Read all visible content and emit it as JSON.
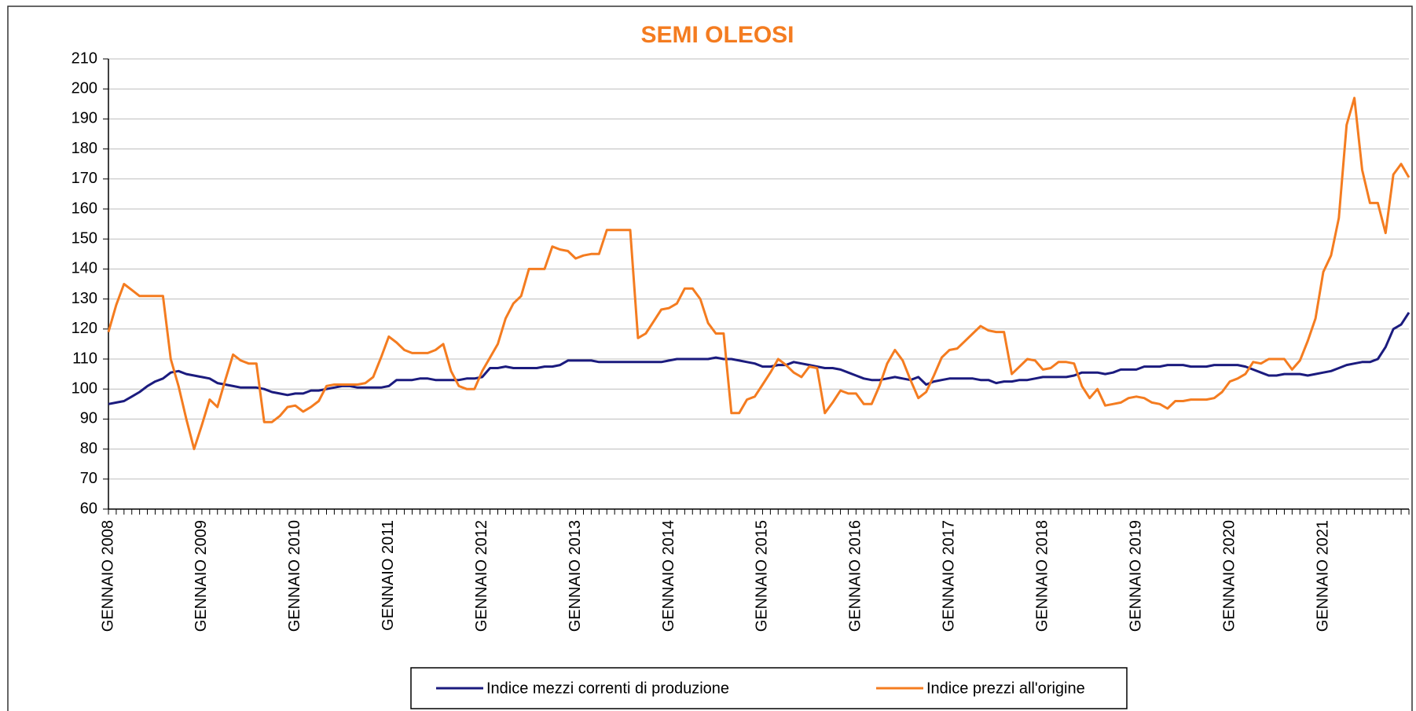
{
  "chart_data": {
    "type": "line",
    "title": "SEMI OLEOSI",
    "categories": [
      "GENNAIO 2008",
      null,
      null,
      null,
      null,
      null,
      null,
      null,
      null,
      null,
      null,
      null,
      "GENNAIO 2009",
      null,
      null,
      null,
      null,
      null,
      null,
      null,
      null,
      null,
      null,
      null,
      "GENNAIO 2010",
      null,
      null,
      null,
      null,
      null,
      null,
      null,
      null,
      null,
      null,
      null,
      "GENNAIO 2011",
      null,
      null,
      null,
      null,
      null,
      null,
      null,
      null,
      null,
      null,
      null,
      "GENNAIO 2012",
      null,
      null,
      null,
      null,
      null,
      null,
      null,
      null,
      null,
      null,
      null,
      "GENNAIO 2013",
      null,
      null,
      null,
      null,
      null,
      null,
      null,
      null,
      null,
      null,
      null,
      "GENNAIO 2014",
      null,
      null,
      null,
      null,
      null,
      null,
      null,
      null,
      null,
      null,
      null,
      "GENNAIO 2015",
      null,
      null,
      null,
      null,
      null,
      null,
      null,
      null,
      null,
      null,
      null,
      "GENNAIO 2016",
      null,
      null,
      null,
      null,
      null,
      null,
      null,
      null,
      null,
      null,
      null,
      "GENNAIO 2017",
      null,
      null,
      null,
      null,
      null,
      null,
      null,
      null,
      null,
      null,
      null,
      "GENNAIO 2018",
      null,
      null,
      null,
      null,
      null,
      null,
      null,
      null,
      null,
      null,
      null,
      "GENNAIO 2019",
      null,
      null,
      null,
      null,
      null,
      null,
      null,
      null,
      null,
      null,
      null,
      "GENNAIO 2020",
      null,
      null,
      null,
      null,
      null,
      null,
      null,
      null,
      null,
      null,
      null,
      "GENNAIO 2021",
      null,
      null,
      null,
      null,
      null,
      null,
      null,
      null,
      null,
      null,
      null
    ],
    "series": [
      {
        "name": "Indice mezzi correnti di produzione",
        "color": "#1b1b7e",
        "values": [
          95,
          95.5,
          96,
          97.5,
          99,
          101,
          102.5,
          103.5,
          105.5,
          106,
          105,
          104.5,
          104,
          103.5,
          102,
          101.5,
          101,
          100.5,
          100.5,
          100.5,
          100,
          99,
          98.5,
          98,
          98.5,
          98.5,
          99.5,
          99.5,
          100,
          100.5,
          101,
          101,
          100.5,
          100.5,
          100.5,
          100.5,
          101,
          103,
          103,
          103,
          103.5,
          103.5,
          103,
          103,
          103,
          103,
          103.5,
          103.5,
          104,
          107,
          107,
          107.5,
          107,
          107,
          107,
          107,
          107.5,
          107.5,
          108,
          109.5,
          109.5,
          109.5,
          109.5,
          109,
          109,
          109,
          109,
          109,
          109,
          109,
          109,
          109,
          109.5,
          110,
          110,
          110,
          110,
          110,
          110.5,
          110,
          110,
          109.5,
          109,
          108.5,
          107.5,
          107.5,
          108,
          108,
          109,
          108.5,
          108,
          107.5,
          107,
          107,
          106.5,
          105.5,
          104.5,
          103.5,
          103,
          103,
          103.5,
          104,
          103.5,
          103,
          104,
          101.5,
          102.5,
          103,
          103.5,
          103.5,
          103.5,
          103.5,
          103,
          103,
          102,
          102.5,
          102.5,
          103,
          103,
          103.5,
          104,
          104,
          104,
          104,
          104.5,
          105.5,
          105.5,
          105.5,
          105,
          105.5,
          106.5,
          106.5,
          106.5,
          107.5,
          107.5,
          107.5,
          108,
          108,
          108,
          107.5,
          107.5,
          107.5,
          108,
          108,
          108,
          108,
          107.5,
          106.5,
          105.5,
          104.5,
          104.5,
          105,
          105,
          105,
          104.5,
          105,
          105.5,
          106,
          107,
          108,
          108.5,
          109,
          109,
          110,
          114,
          120,
          121.5,
          125.5
        ]
      },
      {
        "name": "Indice prezzi all'origine",
        "color": "#f47c20",
        "values": [
          119,
          128,
          135,
          133,
          131,
          131,
          131,
          131,
          110,
          101,
          90,
          80,
          88,
          96.5,
          94,
          103,
          111.5,
          109.5,
          108.5,
          108.5,
          89,
          89,
          91,
          94,
          94.5,
          92.5,
          94,
          96,
          101,
          101.5,
          101.5,
          101.5,
          101.5,
          102,
          104,
          110.5,
          117.5,
          115.5,
          113,
          112,
          112,
          112,
          113,
          115,
          106,
          101,
          100,
          100,
          106,
          110.5,
          115,
          123.5,
          128.5,
          131,
          140,
          140,
          140,
          147.5,
          146.5,
          146,
          143.5,
          144.5,
          145,
          145,
          153,
          153,
          153,
          153,
          117,
          118.5,
          122.5,
          126.5,
          127,
          128.5,
          133.5,
          133.5,
          130,
          122,
          118.5,
          118.5,
          92,
          92,
          96.5,
          97.5,
          101.5,
          105.5,
          110,
          108,
          105.5,
          104,
          107.5,
          107,
          92,
          95.5,
          99.5,
          98.5,
          98.5,
          95,
          95,
          101,
          108.5,
          113,
          109.5,
          103,
          97,
          99,
          104.5,
          110.5,
          113,
          113.5,
          116,
          118.5,
          121,
          119.5,
          119,
          119,
          105,
          107.5,
          110,
          109.5,
          106.5,
          107,
          109,
          109,
          108.5,
          101,
          97,
          100,
          94.5,
          95,
          95.5,
          97,
          97.5,
          97,
          95.5,
          95,
          93.5,
          96,
          96,
          96.5,
          96.5,
          96.5,
          97,
          99,
          102.5,
          103.5,
          105,
          109,
          108.5,
          110,
          110,
          110,
          106.5,
          109.5,
          116,
          123.5,
          139,
          144.5,
          157,
          188,
          197,
          173,
          162,
          162,
          152,
          171.5,
          175,
          170.5
        ]
      }
    ],
    "ylim": [
      60,
      210
    ],
    "yticks": [
      60,
      70,
      80,
      90,
      100,
      110,
      120,
      130,
      140,
      150,
      160,
      170,
      180,
      190,
      200,
      210
    ],
    "grid": true,
    "legend": "bottom"
  }
}
